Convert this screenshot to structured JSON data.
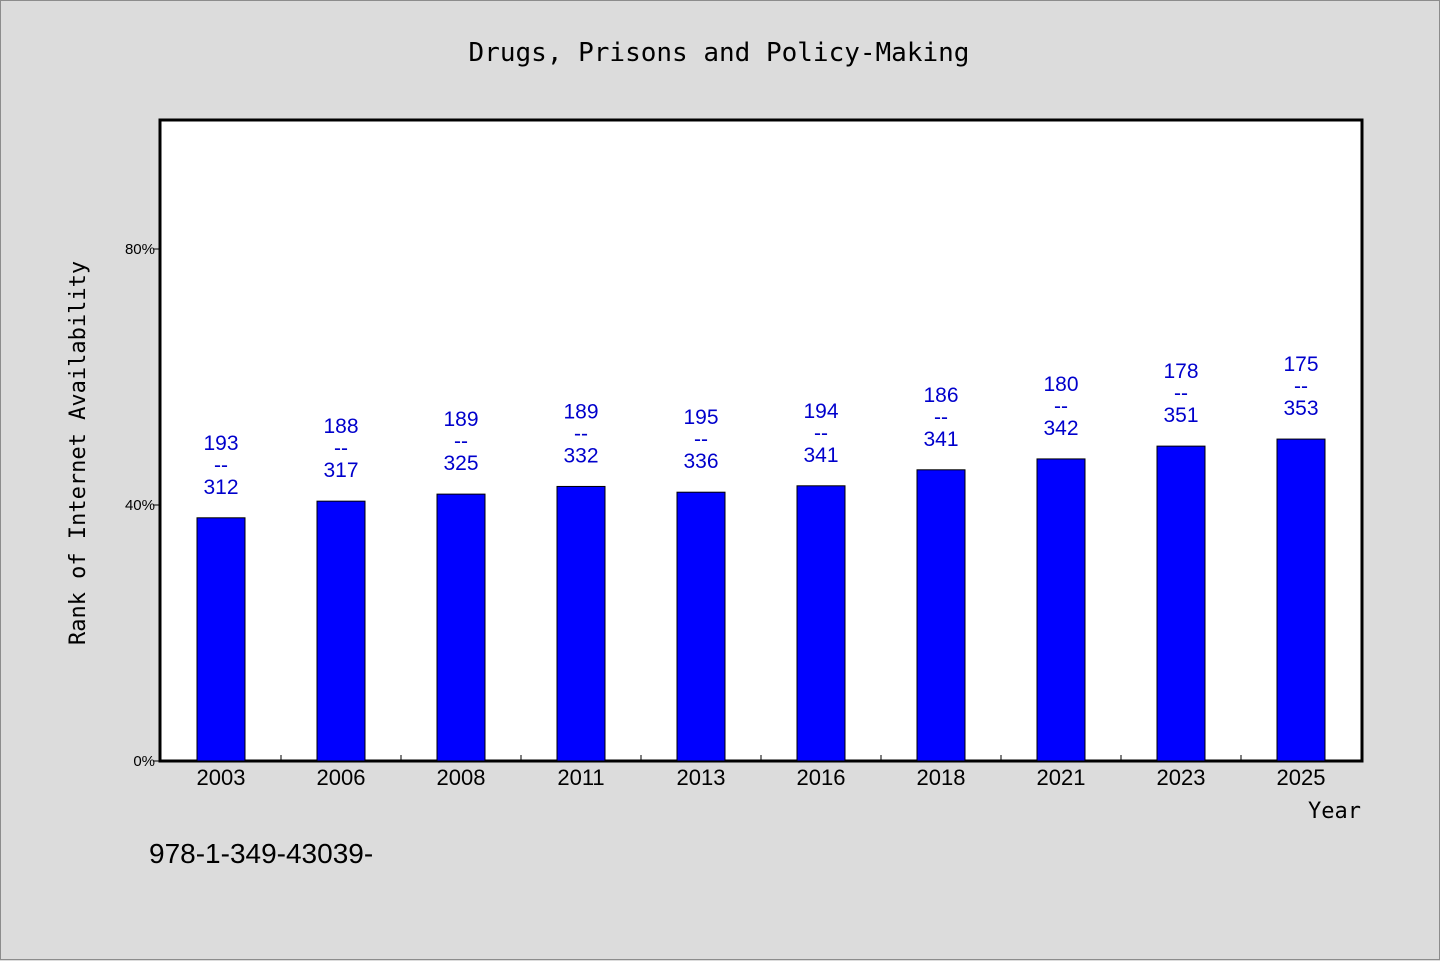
{
  "chart_data": {
    "type": "bar",
    "title": "Drugs, Prisons and Policy-Making",
    "xlabel": "Year",
    "ylabel": "Rank of Internet Availability",
    "ylim": [
      0,
      100
    ],
    "yticks": [
      {
        "value": 0,
        "label": "0%"
      },
      {
        "value": 40,
        "label": "40%"
      },
      {
        "value": 80,
        "label": "80%"
      }
    ],
    "categories": [
      "2003",
      "2006",
      "2008",
      "2011",
      "2013",
      "2016",
      "2018",
      "2021",
      "2023",
      "2025"
    ],
    "values": [
      38.0,
      40.6,
      41.7,
      42.9,
      42.0,
      43.0,
      45.5,
      47.2,
      49.2,
      50.3
    ],
    "bar_labels": [
      {
        "top": "193",
        "sep": "--",
        "bottom": "312"
      },
      {
        "top": "188",
        "sep": "--",
        "bottom": "317"
      },
      {
        "top": "189",
        "sep": "--",
        "bottom": "325"
      },
      {
        "top": "189",
        "sep": "--",
        "bottom": "332"
      },
      {
        "top": "195",
        "sep": "--",
        "bottom": "336"
      },
      {
        "top": "194",
        "sep": "--",
        "bottom": "341"
      },
      {
        "top": "186",
        "sep": "--",
        "bottom": "341"
      },
      {
        "top": "180",
        "sep": "--",
        "bottom": "342"
      },
      {
        "top": "178",
        "sep": "--",
        "bottom": "351"
      },
      {
        "top": "175",
        "sep": "--",
        "bottom": "353"
      }
    ],
    "footnote": "978-1-349-43039-",
    "grid": false,
    "legend": "none",
    "colors": {
      "bar": "#0000ff",
      "bar_label": "#0000cc",
      "background": "#dcdcdc",
      "plot_background": "#ffffff"
    }
  }
}
